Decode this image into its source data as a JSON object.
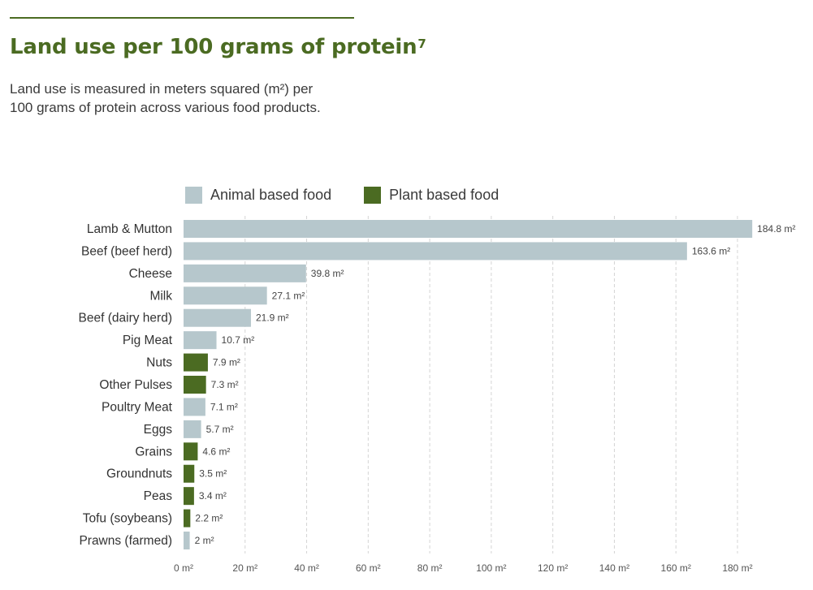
{
  "header": {
    "title": "Land use per 100 grams of protein",
    "title_sup": "7",
    "subtitle_line1": "Land use is measured in meters squared (m²) per",
    "subtitle_line2": "100 grams of protein across various food products."
  },
  "colors": {
    "animal": "#b6c7cc",
    "plant": "#4b6b22",
    "rule": "#4b6b22",
    "grid": "#d4d4d4"
  },
  "chart_data": {
    "type": "bar",
    "orientation": "horizontal",
    "title": "Land use per 100 grams of protein",
    "xlim": [
      0,
      185
    ],
    "x_ticks": [
      0,
      20,
      40,
      60,
      80,
      100,
      120,
      140,
      160,
      180
    ],
    "x_tick_unit": " m²",
    "value_unit": " m²",
    "grid": "vertical dashed",
    "legend_position": "top-left",
    "legend": [
      {
        "key": "animal",
        "label": "Animal based food"
      },
      {
        "key": "plant",
        "label": "Plant based food"
      }
    ],
    "categories": [
      "Lamb & Mutton",
      "Beef (beef herd)",
      "Cheese",
      "Milk",
      "Beef (dairy herd)",
      "Pig Meat",
      "Nuts",
      "Other Pulses",
      "Poultry Meat",
      "Eggs",
      "Grains",
      "Groundnuts",
      "Peas",
      "Tofu (soybeans)",
      "Prawns (farmed)"
    ],
    "values": [
      184.8,
      163.6,
      39.8,
      27.1,
      21.9,
      10.7,
      7.9,
      7.3,
      7.1,
      5.7,
      4.6,
      3.5,
      3.4,
      2.2,
      2
    ],
    "groups": [
      "animal",
      "animal",
      "animal",
      "animal",
      "animal",
      "animal",
      "plant",
      "plant",
      "animal",
      "animal",
      "plant",
      "plant",
      "plant",
      "plant",
      "animal"
    ]
  }
}
